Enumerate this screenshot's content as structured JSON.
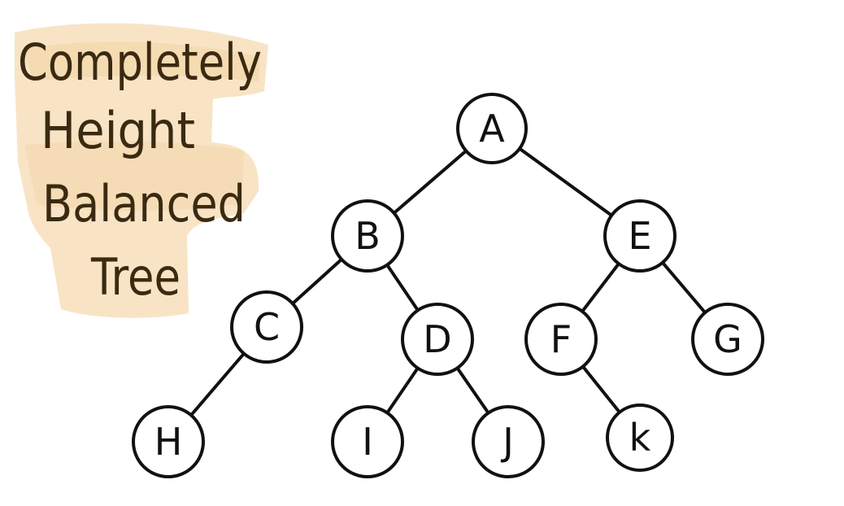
{
  "title": {
    "lines": [
      "Completely",
      "Height",
      "Balanced",
      "Tree"
    ],
    "highlight_color": "#f8e3c2",
    "text_color": "#3a2a12"
  },
  "tree": {
    "nodes": [
      {
        "id": "A",
        "label": "A"
      },
      {
        "id": "B",
        "label": "B"
      },
      {
        "id": "E",
        "label": "E"
      },
      {
        "id": "C",
        "label": "C"
      },
      {
        "id": "D",
        "label": "D"
      },
      {
        "id": "F",
        "label": "F"
      },
      {
        "id": "G",
        "label": "G"
      },
      {
        "id": "H",
        "label": "H"
      },
      {
        "id": "I",
        "label": "I"
      },
      {
        "id": "J",
        "label": "J"
      },
      {
        "id": "K",
        "label": "k"
      }
    ],
    "edges": [
      [
        "A",
        "B"
      ],
      [
        "A",
        "E"
      ],
      [
        "B",
        "C"
      ],
      [
        "B",
        "D"
      ],
      [
        "E",
        "F"
      ],
      [
        "E",
        "G"
      ],
      [
        "C",
        "H"
      ],
      [
        "D",
        "I"
      ],
      [
        "D",
        "J"
      ],
      [
        "F",
        "K"
      ]
    ]
  }
}
